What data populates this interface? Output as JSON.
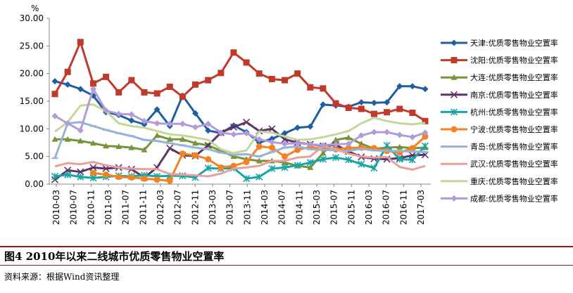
{
  "chart_data": {
    "type": "line",
    "unit": "%",
    "title": "图4  2010年以来二线城市优质零售物业空置率",
    "ylim": [
      0,
      30
    ],
    "yticks": [
      "0.00",
      "5.00",
      "10.00",
      "15.00",
      "20.00",
      "25.00",
      "30.00"
    ],
    "xtick_labels": [
      "2010-03",
      "2010-07",
      "2010-11",
      "2011-03",
      "2011-07",
      "2011-11",
      "2012-03",
      "2012-07",
      "2012-11",
      "2013-03",
      "2013-07",
      "2013-11",
      "2014-03",
      "2014-07",
      "2014-11",
      "2015-03",
      "2015-07",
      "2015-11",
      "2016-03",
      "2016-07",
      "2016-11",
      "2017-03"
    ],
    "num_points": 30,
    "series": [
      {
        "name": "天津:优质零售物业空置率",
        "color": "#1f5f9e",
        "marker": "diamond",
        "values": [
          18.6,
          18.0,
          17.2,
          16.0,
          13.0,
          12.5,
          11.5,
          10.8,
          13.5,
          10.5,
          16.0,
          12.8,
          9.7,
          9.2,
          10.6,
          9.4,
          7.5,
          8.2,
          9.2,
          10.2,
          10.4,
          14.4,
          14.2,
          14.0,
          14.8,
          14.7,
          14.8,
          17.7,
          17.7,
          17.2
        ]
      },
      {
        "name": "沈阳:优质零售物业空置率",
        "color": "#c0392b",
        "marker": "square",
        "values": [
          16.3,
          20.3,
          25.7,
          18.2,
          19.4,
          16.6,
          18.8,
          16.6,
          16.4,
          17.6,
          15.8,
          18.0,
          18.8,
          20.1,
          23.8,
          22.0,
          20.0,
          19.0,
          18.8,
          20.0,
          17.5,
          17.3,
          14.6,
          13.8,
          13.6,
          12.7,
          13.0,
          13.6,
          12.9,
          11.4
        ]
      },
      {
        "name": "大连:优质零售物业空置率",
        "color": "#77933c",
        "marker": "triangle",
        "values": [
          8.1,
          8.1,
          7.8,
          7.4,
          6.9,
          6.8,
          6.6,
          6.2,
          8.8,
          8.1,
          8.1,
          7.4,
          7.0,
          6.0,
          5.0,
          4.5,
          4.2,
          4.2,
          3.9,
          3.3,
          3.0,
          5.6,
          8.0,
          8.4,
          7.3,
          6.4,
          6.6,
          6.7,
          6.5,
          6.6
        ]
      },
      {
        "name": "南京:优质零售物业空置率",
        "color": "#5c3566",
        "marker": "x",
        "values": [
          0.8,
          2.5,
          2.2,
          3.0,
          2.8,
          3.0,
          2.7,
          1.2,
          3.0,
          6.5,
          5.2,
          5.1,
          7.0,
          9.3,
          10.3,
          11.2,
          9.6,
          10.0,
          8.1,
          7.5,
          7.2,
          6.9,
          7.1,
          5.9,
          4.9,
          4.6,
          4.5,
          4.7,
          5.2,
          5.3
        ]
      },
      {
        "name": "杭州:优质零售物业空置率",
        "color": "#17a5a5",
        "marker": "star",
        "values": [
          1.4,
          1.7,
          1.3,
          1.1,
          1.3,
          1.5,
          1.4,
          1.6,
          1.4,
          1.5,
          1.5,
          1.2,
          2.9,
          2.8,
          2.9,
          1.0,
          1.3,
          2.8,
          3.0,
          3.4,
          3.9,
          4.5,
          4.8,
          4.4,
          3.6,
          2.9,
          7.0,
          4.5,
          4.4,
          6.9
        ]
      },
      {
        "name": "宁波:优质零售物业空置率",
        "color": "#f58220",
        "marker": "circle",
        "values": [
          null,
          null,
          null,
          2.0,
          1.7,
          1.3,
          1.2,
          1.0,
          0.8,
          0.6,
          5.5,
          5.2,
          4.5,
          3.0,
          3.3,
          4.0,
          6.8,
          6.6,
          5.0,
          6.2,
          6.7,
          6.4,
          6.3,
          6.5,
          6.6,
          6.5,
          6.0,
          5.7,
          6.5,
          8.6
        ]
      },
      {
        "name": "青岛:优质零售物业空置率",
        "color": "#95b3d7",
        "marker": "dash",
        "values": [
          4.7,
          11.0,
          11.2,
          10.5,
          9.8,
          9.2,
          8.7,
          8.0,
          7.8,
          7.4,
          7.0,
          6.6,
          6.3,
          5.7,
          5.3,
          5.4,
          5.0,
          5.8,
          6.6,
          6.8,
          6.3,
          6.2,
          6.1,
          6.0,
          6.4,
          6.1,
          6.0,
          6.0,
          5.9,
          5.8
        ]
      },
      {
        "name": "武汉:优质零售物业空置率",
        "color": "#e6a0a0",
        "marker": "none",
        "values": [
          3.2,
          3.8,
          3.6,
          4.0,
          3.4,
          3.0,
          2.8,
          2.7,
          2.7,
          1.8,
          1.7,
          1.6,
          1.4,
          1.9,
          2.8,
          3.0,
          3.3,
          4.2,
          4.2,
          4.8,
          5.0,
          6.9,
          6.3,
          5.5,
          5.0,
          4.8,
          4.9,
          3.1,
          2.6,
          3.3
        ]
      },
      {
        "name": "重庆:优质零售物业空置率",
        "color": "#c4d79b",
        "marker": "none",
        "values": [
          9.5,
          11.2,
          14.2,
          14.4,
          13.2,
          11.0,
          10.5,
          10.2,
          9.6,
          9.0,
          8.8,
          8.4,
          8.0,
          6.3,
          5.6,
          6.1,
          9.5,
          9.3,
          8.6,
          8.0,
          8.1,
          8.5,
          9.0,
          9.6,
          11.0,
          12.0,
          11.4,
          11.0,
          10.8,
          11.1
        ]
      },
      {
        "name": "成都:优质零售物业空置率",
        "color": "#b19cd9",
        "marker": "diamond",
        "values": [
          12.3,
          11.0,
          9.7,
          17.2,
          13.3,
          12.7,
          12.6,
          11.4,
          11.0,
          10.9,
          10.9,
          10.3,
          10.9,
          9.3,
          9.0,
          9.2,
          8.1,
          7.6,
          7.3,
          7.4,
          7.2,
          7.0,
          7.2,
          7.3,
          8.8,
          9.4,
          9.4,
          8.9,
          8.5,
          9.3
        ]
      }
    ]
  },
  "caption": "图4   2010年以来二线城市优质零售物业空置率",
  "source": "资料来源：根据Wind资讯整理",
  "unit_label": "%"
}
